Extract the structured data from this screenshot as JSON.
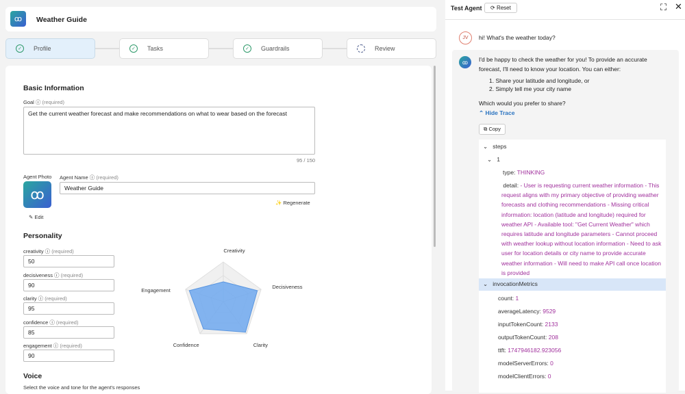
{
  "header": {
    "title": "Weather Guide",
    "logo_icon": "binoculars-icon"
  },
  "steps": [
    {
      "label": "Profile",
      "state": "complete",
      "active": true
    },
    {
      "label": "Tasks",
      "state": "complete"
    },
    {
      "label": "Guardrails",
      "state": "complete"
    },
    {
      "label": "Review",
      "state": "pending"
    }
  ],
  "basic": {
    "title": "Basic Information",
    "goal_label": "Goal",
    "required": "(required)",
    "goal_value": "Get the current weather forecast and make recommendations on what to wear based on the forecast",
    "goal_count": "95 / 150",
    "photo_label": "Agent Photo",
    "name_label": "Agent Name",
    "name_value": "Weather Guide",
    "regenerate": "Regenerate",
    "edit": "Edit"
  },
  "personality": {
    "title": "Personality",
    "fields": [
      {
        "label": "creativity",
        "value": "50"
      },
      {
        "label": "decisiveness",
        "value": "90"
      },
      {
        "label": "clarity",
        "value": "95"
      },
      {
        "label": "confidence",
        "value": "85"
      },
      {
        "label": "engagement",
        "value": "90"
      }
    ]
  },
  "chart_data": {
    "type": "radar",
    "axes": [
      "Creativity",
      "Decisiveness",
      "Clarity",
      "Confidence",
      "Engagement"
    ],
    "values": [
      50,
      90,
      95,
      85,
      90
    ],
    "range": [
      0,
      100
    ],
    "fill_color": "#6fa8ef"
  },
  "voice": {
    "title": "Voice",
    "subtitle": "Select the voice and tone for the agent's responses"
  },
  "test": {
    "title": "Test Agent",
    "reset": "Reset",
    "user_initials": "JV",
    "user_msg": "hi! What's the weather today?",
    "agent_intro": "I'd be happy to check the weather for you! To provide an accurate forecast, I'll need to know your location. You can either:",
    "options": [
      "Share your latitude and longitude, or",
      "Simply tell me your city name"
    ],
    "question": "Which would you prefer to share?",
    "hide_trace": "Hide Trace",
    "copy": "Copy"
  },
  "trace": {
    "steps": "steps",
    "step_no": "1",
    "type_key": "type:",
    "type_val": "THINKING",
    "detail_key": "detail:",
    "detail_val": "- User is requesting current weather information - This request aligns with my primary objective of providing weather forecasts and clothing recommendations - Missing critical information: location (latitude and longitude) required for weather API - Available tool: \"Get Current Weather\" which requires latitude and longitude parameters - Cannot proceed with weather lookup without location information - Need to ask user for location details or city name to provide accurate weather information - Will need to make API call once location is provided",
    "metrics_key": "invocationMetrics",
    "metrics": [
      {
        "k": "count:",
        "v": "1"
      },
      {
        "k": "averageLatency:",
        "v": "9529"
      },
      {
        "k": "inputTokenCount:",
        "v": "2133"
      },
      {
        "k": "outputTokenCount:",
        "v": "208"
      },
      {
        "k": "ttft:",
        "v": "1747946182.923056"
      },
      {
        "k": "modelServerErrors:",
        "v": "0"
      },
      {
        "k": "modelClientErrors:",
        "v": "0"
      }
    ]
  }
}
